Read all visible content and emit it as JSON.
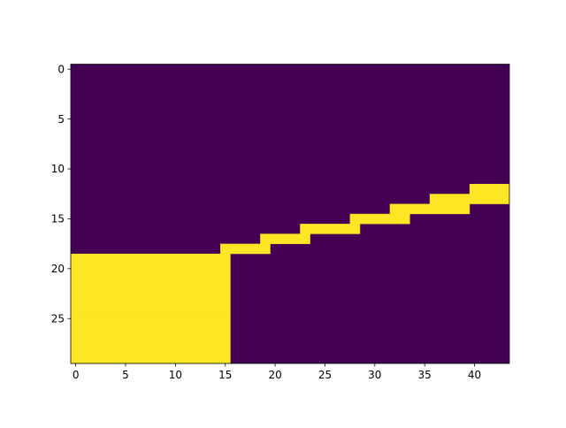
{
  "chart_data": {
    "type": "heatmap",
    "title": "",
    "xlabel": "",
    "ylabel": "",
    "colormap": "viridis",
    "colors": {
      "low": "#440154",
      "high": "#fde725",
      "axis": "#000000",
      "background": "#ffffff"
    },
    "shape": [
      30,
      44
    ],
    "value_range": [
      0,
      1
    ],
    "xlim": [
      -0.5,
      43.5
    ],
    "ylim": [
      29.5,
      -0.5
    ],
    "xticks": [
      0,
      5,
      10,
      15,
      20,
      25,
      30,
      35,
      40
    ],
    "yticks": [
      0,
      5,
      10,
      15,
      20,
      25
    ],
    "xtick_labels": [
      "0",
      "5",
      "10",
      "15",
      "20",
      "25",
      "30",
      "35",
      "40"
    ],
    "ytick_labels": [
      "0",
      "5",
      "10",
      "15",
      "20",
      "25"
    ],
    "grid": false,
    "legend": "none",
    "high_value_runs": [
      {
        "row": 12,
        "col_start": 40,
        "col_end": 43
      },
      {
        "row": 13,
        "col_start": 36,
        "col_end": 43
      },
      {
        "row": 14,
        "col_start": 32,
        "col_end": 39
      },
      {
        "row": 15,
        "col_start": 28,
        "col_end": 33
      },
      {
        "row": 16,
        "col_start": 23,
        "col_end": 28
      },
      {
        "row": 17,
        "col_start": 19,
        "col_end": 23
      },
      {
        "row": 18,
        "col_start": 15,
        "col_end": 19
      },
      {
        "row": 19,
        "col_start": 0,
        "col_end": 15
      },
      {
        "row": 20,
        "col_start": 0,
        "col_end": 15
      },
      {
        "row": 21,
        "col_start": 0,
        "col_end": 15
      },
      {
        "row": 22,
        "col_start": 0,
        "col_end": 15
      },
      {
        "row": 23,
        "col_start": 0,
        "col_end": 15
      },
      {
        "row": 24,
        "col_start": 0,
        "col_end": 15
      },
      {
        "row": 25,
        "col_start": 0,
        "col_end": 15
      },
      {
        "row": 26,
        "col_start": 0,
        "col_end": 15
      },
      {
        "row": 27,
        "col_start": 0,
        "col_end": 15
      },
      {
        "row": 28,
        "col_start": 0,
        "col_end": 15
      },
      {
        "row": 29,
        "col_start": 0,
        "col_end": 15
      }
    ]
  }
}
